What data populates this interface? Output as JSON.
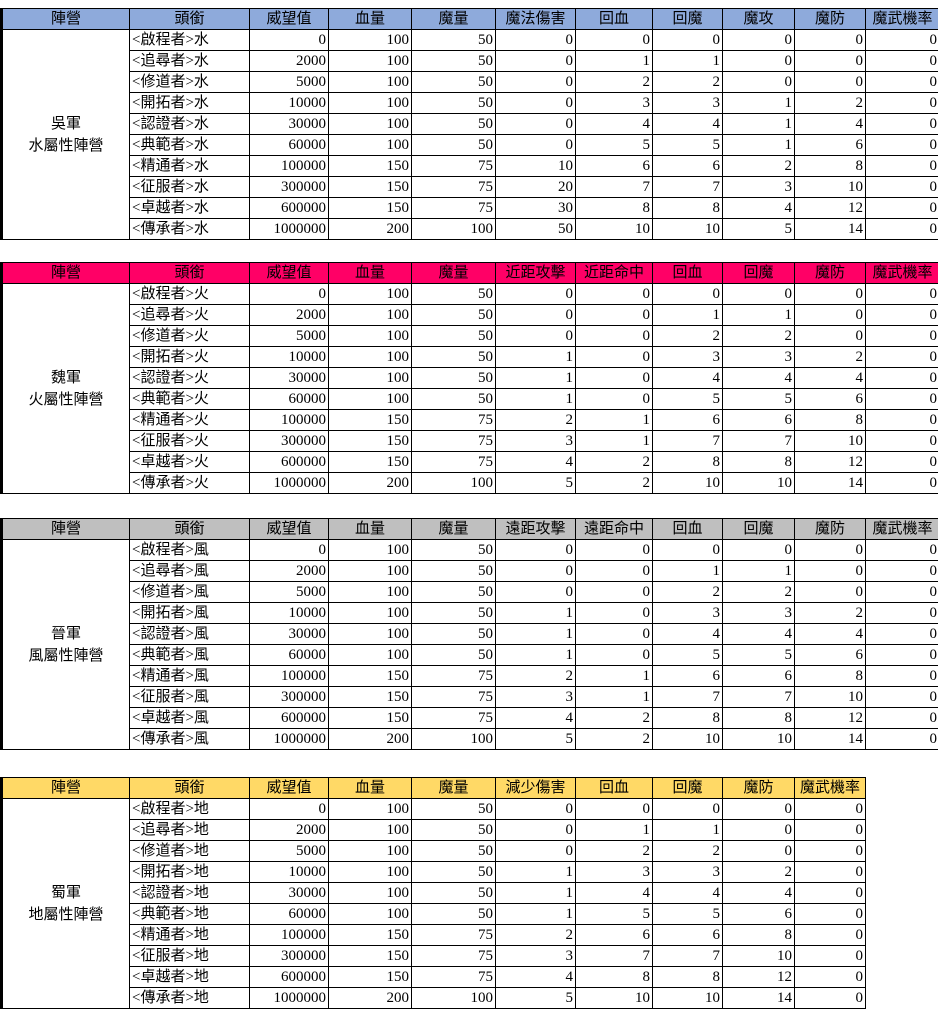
{
  "sections": [
    {
      "header_color": "#8eaadb",
      "faction": "吳軍",
      "attribute": "水屬性陣營",
      "headers": [
        "陣營",
        "頭銜",
        "威望值",
        "血量",
        "魔量",
        "魔法傷害",
        "回血",
        "回魔",
        "魔攻",
        "魔防",
        "魔武機率"
      ],
      "rows": [
        [
          "<啟程者>水",
          0,
          100,
          50,
          0,
          0,
          0,
          0,
          0,
          0
        ],
        [
          "<追尋者>水",
          2000,
          100,
          50,
          0,
          1,
          1,
          0,
          0,
          0
        ],
        [
          "<修道者>水",
          5000,
          100,
          50,
          0,
          2,
          2,
          0,
          0,
          0
        ],
        [
          "<開拓者>水",
          10000,
          100,
          50,
          0,
          3,
          3,
          1,
          2,
          0
        ],
        [
          "<認證者>水",
          30000,
          100,
          50,
          0,
          4,
          4,
          1,
          4,
          0
        ],
        [
          "<典範者>水",
          60000,
          100,
          50,
          0,
          5,
          5,
          1,
          6,
          0
        ],
        [
          "<精通者>水",
          100000,
          150,
          75,
          10,
          6,
          6,
          2,
          8,
          0
        ],
        [
          "<征服者>水",
          300000,
          150,
          75,
          20,
          7,
          7,
          3,
          10,
          0
        ],
        [
          "<卓越者>水",
          600000,
          150,
          75,
          30,
          8,
          8,
          4,
          12,
          0
        ],
        [
          "<傳承者>水",
          1000000,
          200,
          100,
          50,
          10,
          10,
          5,
          14,
          0
        ]
      ]
    },
    {
      "header_color": "#ff0066",
      "faction": "魏軍",
      "attribute": "火屬性陣營",
      "headers": [
        "陣營",
        "頭銜",
        "威望值",
        "血量",
        "魔量",
        "近距攻擊",
        "近距命中",
        "回血",
        "回魔",
        "魔防",
        "魔武機率"
      ],
      "rows": [
        [
          "<啟程者>火",
          0,
          100,
          50,
          0,
          0,
          0,
          0,
          0,
          0
        ],
        [
          "<追尋者>火",
          2000,
          100,
          50,
          0,
          0,
          1,
          1,
          0,
          0
        ],
        [
          "<修道者>火",
          5000,
          100,
          50,
          0,
          0,
          2,
          2,
          0,
          0
        ],
        [
          "<開拓者>火",
          10000,
          100,
          50,
          1,
          0,
          3,
          3,
          2,
          0
        ],
        [
          "<認證者>火",
          30000,
          100,
          50,
          1,
          0,
          4,
          4,
          4,
          0
        ],
        [
          "<典範者>火",
          60000,
          100,
          50,
          1,
          0,
          5,
          5,
          6,
          0
        ],
        [
          "<精通者>火",
          100000,
          150,
          75,
          2,
          1,
          6,
          6,
          8,
          0
        ],
        [
          "<征服者>火",
          300000,
          150,
          75,
          3,
          1,
          7,
          7,
          10,
          0
        ],
        [
          "<卓越者>火",
          600000,
          150,
          75,
          4,
          2,
          8,
          8,
          12,
          0
        ],
        [
          "<傳承者>火",
          1000000,
          200,
          100,
          5,
          2,
          10,
          10,
          14,
          0
        ]
      ]
    },
    {
      "header_color": "#bfbfbf",
      "faction": "晉軍",
      "attribute": "風屬性陣營",
      "headers": [
        "陣營",
        "頭銜",
        "威望值",
        "血量",
        "魔量",
        "遠距攻擊",
        "遠距命中",
        "回血",
        "回魔",
        "魔防",
        "魔武機率"
      ],
      "rows": [
        [
          "<啟程者>風",
          0,
          100,
          50,
          0,
          0,
          0,
          0,
          0,
          0
        ],
        [
          "<追尋者>風",
          2000,
          100,
          50,
          0,
          0,
          1,
          1,
          0,
          0
        ],
        [
          "<修道者>風",
          5000,
          100,
          50,
          0,
          0,
          2,
          2,
          0,
          0
        ],
        [
          "<開拓者>風",
          10000,
          100,
          50,
          1,
          0,
          3,
          3,
          2,
          0
        ],
        [
          "<認證者>風",
          30000,
          100,
          50,
          1,
          0,
          4,
          4,
          4,
          0
        ],
        [
          "<典範者>風",
          60000,
          100,
          50,
          1,
          0,
          5,
          5,
          6,
          0
        ],
        [
          "<精通者>風",
          100000,
          150,
          75,
          2,
          1,
          6,
          6,
          8,
          0
        ],
        [
          "<征服者>風",
          300000,
          150,
          75,
          3,
          1,
          7,
          7,
          10,
          0
        ],
        [
          "<卓越者>風",
          600000,
          150,
          75,
          4,
          2,
          8,
          8,
          12,
          0
        ],
        [
          "<傳承者>風",
          1000000,
          200,
          100,
          5,
          2,
          10,
          10,
          14,
          0
        ]
      ]
    },
    {
      "header_color": "#ffd966",
      "faction": "蜀軍",
      "attribute": "地屬性陣營",
      "headers": [
        "陣營",
        "頭銜",
        "威望值",
        "血量",
        "魔量",
        "減少傷害",
        "回血",
        "回魔",
        "魔防",
        "魔武機率"
      ],
      "rows": [
        [
          "<啟程者>地",
          0,
          100,
          50,
          0,
          0,
          0,
          0,
          0
        ],
        [
          "<追尋者>地",
          2000,
          100,
          50,
          0,
          1,
          1,
          0,
          0
        ],
        [
          "<修道者>地",
          5000,
          100,
          50,
          0,
          2,
          2,
          0,
          0
        ],
        [
          "<開拓者>地",
          10000,
          100,
          50,
          1,
          3,
          3,
          2,
          0
        ],
        [
          "<認證者>地",
          30000,
          100,
          50,
          1,
          4,
          4,
          4,
          0
        ],
        [
          "<典範者>地",
          60000,
          100,
          50,
          1,
          5,
          5,
          6,
          0
        ],
        [
          "<精通者>地",
          100000,
          150,
          75,
          2,
          6,
          6,
          8,
          0
        ],
        [
          "<征服者>地",
          300000,
          150,
          75,
          3,
          7,
          7,
          10,
          0
        ],
        [
          "<卓越者>地",
          600000,
          150,
          75,
          4,
          8,
          8,
          12,
          0
        ],
        [
          "<傳承者>地",
          1000000,
          200,
          100,
          5,
          10,
          10,
          14,
          0
        ]
      ]
    }
  ]
}
